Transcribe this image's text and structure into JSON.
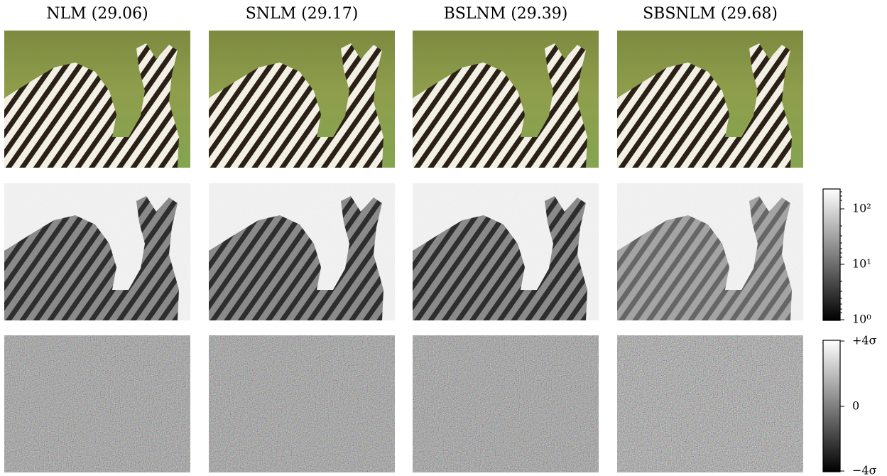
{
  "titles": [
    "NLM (29.06)",
    "SNLM (29.17)",
    "BSLNM (29.39)",
    "SBSNLM (29.68)"
  ],
  "colorbars": [
    {
      "ticks": [
        "10²",
        "10¹",
        "10⁰"
      ]
    },
    {
      "ticks": [
        "+4σ",
        "0",
        "−4σ"
      ]
    }
  ]
}
